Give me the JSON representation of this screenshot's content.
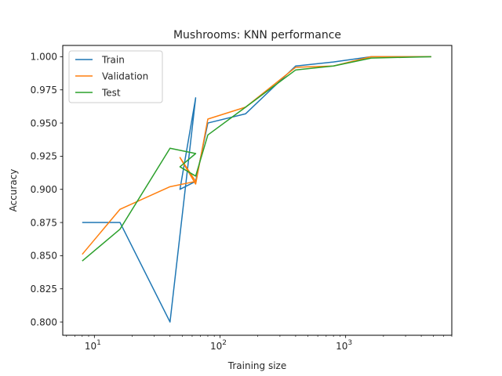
{
  "chart_data": {
    "type": "line",
    "title": "Mushrooms: KNN performance",
    "xlabel": "Training size",
    "ylabel": "Accuracy",
    "xscale": "log",
    "xlim": [
      5.6,
      7000
    ],
    "ylim": [
      0.79,
      1.0085
    ],
    "x_ticks": [
      {
        "value": 10,
        "base": "10",
        "exp": "1"
      },
      {
        "value": 100,
        "base": "10",
        "exp": "2"
      },
      {
        "value": 1000,
        "base": "10",
        "exp": "3"
      }
    ],
    "y_ticks": [
      0.8,
      0.825,
      0.85,
      0.875,
      0.9,
      0.925,
      0.95,
      0.975,
      1.0
    ],
    "y_tick_labels": [
      "0.800",
      "0.825",
      "0.850",
      "0.875",
      "0.900",
      "0.925",
      "0.950",
      "0.975",
      "1.000"
    ],
    "legend_position": "top-left",
    "grid": false,
    "series": [
      {
        "name": "Train",
        "color": "#1f77b4",
        "x": [
          8,
          16,
          40,
          64,
          48,
          64,
          80,
          160,
          400,
          800,
          1600,
          4800
        ],
        "y": [
          0.875,
          0.875,
          0.8,
          0.969,
          0.9,
          0.906,
          0.95,
          0.957,
          0.993,
          0.996,
          1.0,
          1.0
        ]
      },
      {
        "name": "Validation",
        "color": "#ff7f0e",
        "x": [
          8,
          16,
          40,
          64,
          48,
          64,
          80,
          160,
          400,
          800,
          1600,
          4800
        ],
        "y": [
          0.851,
          0.885,
          0.902,
          0.906,
          0.924,
          0.904,
          0.953,
          0.962,
          0.992,
          0.993,
          1.0,
          1.0
        ]
      },
      {
        "name": "Test",
        "color": "#2ca02c",
        "x": [
          8,
          16,
          40,
          64,
          48,
          64,
          80,
          160,
          400,
          800,
          1600,
          4800
        ],
        "y": [
          0.846,
          0.87,
          0.931,
          0.927,
          0.917,
          0.91,
          0.941,
          0.962,
          0.99,
          0.993,
          0.999,
          1.0
        ]
      }
    ]
  }
}
